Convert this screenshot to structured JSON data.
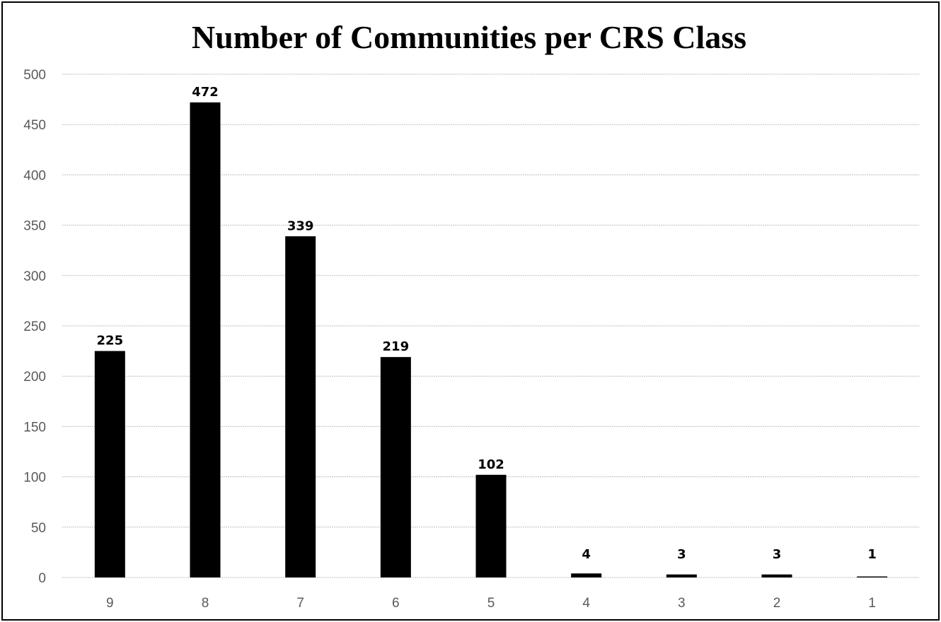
{
  "chart_data": {
    "type": "bar",
    "title": "Number of Communities per CRS Class",
    "xlabel": "",
    "ylabel": "",
    "categories": [
      "9",
      "8",
      "7",
      "6",
      "5",
      "4",
      "3",
      "2",
      "1"
    ],
    "values": [
      225,
      472,
      339,
      219,
      102,
      4,
      3,
      3,
      1
    ],
    "data_labels": [
      "225",
      "472",
      "339",
      "219",
      "102",
      "4",
      "3",
      "3",
      "1"
    ],
    "ylim": [
      0,
      500
    ],
    "yticks": [
      0,
      50,
      100,
      150,
      200,
      250,
      300,
      350,
      400,
      450,
      500
    ],
    "grid": true,
    "legend": "none",
    "colors": {
      "bar": "#000000",
      "grid": "#bfbfbf",
      "tick_text": "#595959"
    }
  }
}
